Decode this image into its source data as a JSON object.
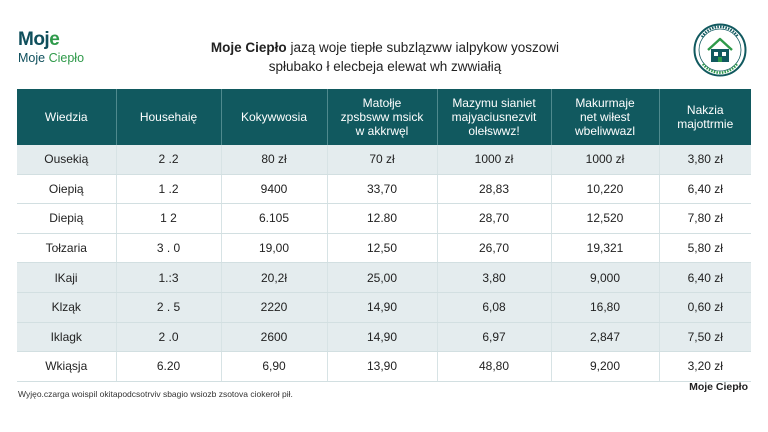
{
  "logo": {
    "line1_a": "Moj",
    "line1_b": "e",
    "line2_a": "Moje ",
    "line2_b": "Ciepło"
  },
  "title": {
    "line1_bold": "Moje Ciepło",
    "line1_rest": " jazą woje tiepłe subzlązww ialpykow yoszowi",
    "line2": "spłubako ł elecbeja elewat wh zwwiałią"
  },
  "table": {
    "headers": [
      "Wiedzia",
      "Househaię",
      "Kokywwosia",
      "Matołje\nzpsbsww msick\nw akkrwęl",
      "Mazymu sianiet\nmajyaciusnezvit\nolełswwz!",
      "Makurmaje\nnet wiłest\nwbeliwwazl",
      "Nakzia\nmajottrmie"
    ],
    "rows": [
      [
        "Ousekią",
        "2 .2",
        "80 zł",
        "70 zł",
        "1000 zł",
        "1000 zł",
        "3,80 zł"
      ],
      [
        "Oiepią",
        "1 .2",
        "9400",
        "33,70",
        "28,83",
        "10,220",
        "6,40 zł"
      ],
      [
        "Diepią",
        "1  2",
        "6.105",
        "12.80",
        "28,70",
        "12,520",
        "7,80 zł"
      ],
      [
        "Tołzaria",
        "3 . 0",
        "19,00",
        "12,50",
        "26,70",
        "19,321",
        "5,80 zł"
      ],
      [
        "lKaji",
        "1.:3",
        "20,2ł",
        "25,00",
        "3,80",
        "9,000",
        "6,40 zł"
      ],
      [
        "Klząk",
        "2 . 5",
        "2220",
        "14,90",
        "6,08",
        "16,80",
        "0,60 zł"
      ],
      [
        "Iklagk",
        "2 .0",
        "2600",
        "14,90",
        "6,97",
        "2,847",
        "7,50 zł"
      ],
      [
        "Wkiąsja",
        "6.20",
        "6,90",
        "13,90",
        "48,80",
        "9,200",
        "3,20 zł"
      ]
    ]
  },
  "footnote": "Wyjęo.czarga woispil okitapodcsotrviv sbagio wsiozb zsotova ciokeroł pił.",
  "brand_bottom": "Moje Ciepło",
  "colors": {
    "header_bg": "#11595f",
    "row_alt": "#e4ecee",
    "accent_green": "#2f9a4a"
  }
}
